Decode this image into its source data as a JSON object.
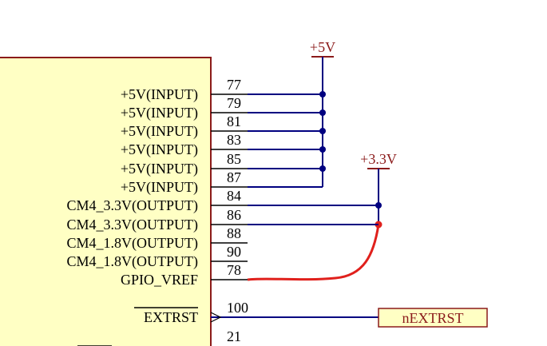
{
  "power": [
    {
      "label": "+5V"
    },
    {
      "label": "+3.3V"
    }
  ],
  "pins": [
    {
      "name": "+5V(INPUT)",
      "number": "77"
    },
    {
      "name": "+5V(INPUT)",
      "number": "79"
    },
    {
      "name": "+5V(INPUT)",
      "number": "81"
    },
    {
      "name": "+5V(INPUT)",
      "number": "83"
    },
    {
      "name": "+5V(INPUT)",
      "number": "85"
    },
    {
      "name": "+5V(INPUT)",
      "number": "87"
    },
    {
      "name": "CM4_3.3V(OUTPUT)",
      "number": "84"
    },
    {
      "name": "CM4_3.3V(OUTPUT)",
      "number": "86"
    },
    {
      "name": "CM4_1.8V(OUTPUT)",
      "number": "88"
    },
    {
      "name": "CM4_1.8V(OUTPUT)",
      "number": "90"
    },
    {
      "name": "GPIO_VREF",
      "number": "78"
    },
    {
      "name": "EXTRST",
      "number": "100"
    },
    {
      "number": "21"
    }
  ],
  "net_label": "nEXTRST"
}
